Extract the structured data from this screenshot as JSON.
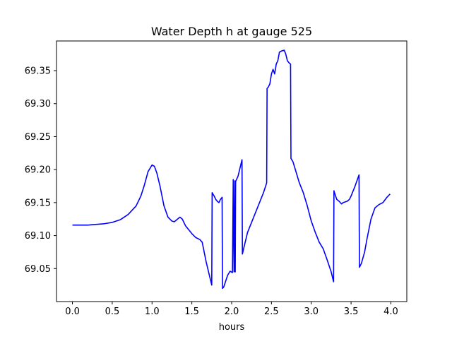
{
  "chart_data": {
    "type": "line",
    "title": "Water Depth h at gauge 525",
    "xlabel": "hours",
    "ylabel": "",
    "xlim": [
      -0.2,
      4.2
    ],
    "ylim": [
      69.0,
      69.395
    ],
    "xticks": [
      0.0,
      0.5,
      1.0,
      1.5,
      2.0,
      2.5,
      3.0,
      3.5,
      4.0
    ],
    "xtick_labels": [
      "0.0",
      "0.5",
      "1.0",
      "1.5",
      "2.0",
      "2.5",
      "3.0",
      "3.5",
      "4.0"
    ],
    "yticks": [
      69.05,
      69.1,
      69.15,
      69.2,
      69.25,
      69.3,
      69.35
    ],
    "ytick_labels": [
      "69.05",
      "69.10",
      "69.15",
      "69.20",
      "69.25",
      "69.30",
      "69.35"
    ],
    "grid": false,
    "series": [
      {
        "color": "#0000ff",
        "points": [
          [
            0.0,
            69.116
          ],
          [
            0.2,
            69.116
          ],
          [
            0.4,
            69.118
          ],
          [
            0.5,
            69.12
          ],
          [
            0.6,
            69.124
          ],
          [
            0.7,
            69.132
          ],
          [
            0.8,
            69.145
          ],
          [
            0.86,
            69.16
          ],
          [
            0.9,
            69.175
          ],
          [
            0.95,
            69.197
          ],
          [
            1.0,
            69.207
          ],
          [
            1.03,
            69.205
          ],
          [
            1.06,
            69.195
          ],
          [
            1.1,
            69.175
          ],
          [
            1.15,
            69.145
          ],
          [
            1.2,
            69.128
          ],
          [
            1.25,
            69.122
          ],
          [
            1.28,
            69.121
          ],
          [
            1.32,
            69.125
          ],
          [
            1.35,
            69.128
          ],
          [
            1.38,
            69.125
          ],
          [
            1.42,
            69.115
          ],
          [
            1.5,
            69.103
          ],
          [
            1.55,
            69.097
          ],
          [
            1.6,
            69.094
          ],
          [
            1.63,
            69.09
          ],
          [
            1.68,
            69.06
          ],
          [
            1.72,
            69.04
          ],
          [
            1.75,
            69.025
          ],
          [
            1.755,
            69.165
          ],
          [
            1.78,
            69.16
          ],
          [
            1.8,
            69.155
          ],
          [
            1.82,
            69.152
          ],
          [
            1.84,
            69.15
          ],
          [
            1.86,
            69.155
          ],
          [
            1.88,
            69.158
          ],
          [
            1.885,
            69.02
          ],
          [
            1.9,
            69.022
          ],
          [
            1.95,
            69.04
          ],
          [
            1.98,
            69.046
          ],
          [
            2.01,
            69.044
          ],
          [
            2.02,
            69.185
          ],
          [
            2.03,
            69.045
          ],
          [
            2.04,
            69.183
          ],
          [
            2.045,
            69.045
          ],
          [
            2.05,
            69.182
          ],
          [
            2.08,
            69.19
          ],
          [
            2.1,
            69.2
          ],
          [
            2.13,
            69.215
          ],
          [
            2.135,
            69.072
          ],
          [
            2.15,
            69.08
          ],
          [
            2.2,
            69.105
          ],
          [
            2.25,
            69.12
          ],
          [
            2.3,
            69.135
          ],
          [
            2.35,
            69.15
          ],
          [
            2.4,
            69.165
          ],
          [
            2.44,
            69.18
          ],
          [
            2.445,
            69.323
          ],
          [
            2.46,
            69.325
          ],
          [
            2.48,
            69.33
          ],
          [
            2.5,
            69.345
          ],
          [
            2.52,
            69.352
          ],
          [
            2.54,
            69.345
          ],
          [
            2.56,
            69.36
          ],
          [
            2.58,
            69.365
          ],
          [
            2.6,
            69.378
          ],
          [
            2.63,
            69.38
          ],
          [
            2.66,
            69.381
          ],
          [
            2.68,
            69.375
          ],
          [
            2.7,
            69.365
          ],
          [
            2.72,
            69.362
          ],
          [
            2.74,
            69.36
          ],
          [
            2.745,
            69.217
          ],
          [
            2.77,
            69.212
          ],
          [
            2.8,
            69.2
          ],
          [
            2.85,
            69.18
          ],
          [
            2.9,
            69.165
          ],
          [
            2.95,
            69.145
          ],
          [
            3.0,
            69.122
          ],
          [
            3.05,
            69.105
          ],
          [
            3.1,
            69.09
          ],
          [
            3.15,
            69.08
          ],
          [
            3.2,
            69.063
          ],
          [
            3.25,
            69.045
          ],
          [
            3.28,
            69.03
          ],
          [
            3.285,
            69.168
          ],
          [
            3.3,
            69.162
          ],
          [
            3.32,
            69.155
          ],
          [
            3.35,
            69.152
          ],
          [
            3.38,
            69.148
          ],
          [
            3.4,
            69.15
          ],
          [
            3.45,
            69.152
          ],
          [
            3.48,
            69.155
          ],
          [
            3.5,
            69.16
          ],
          [
            3.55,
            69.175
          ],
          [
            3.6,
            69.192
          ],
          [
            3.605,
            69.052
          ],
          [
            3.63,
            69.058
          ],
          [
            3.67,
            69.075
          ],
          [
            3.7,
            69.095
          ],
          [
            3.75,
            69.125
          ],
          [
            3.8,
            69.142
          ],
          [
            3.85,
            69.147
          ],
          [
            3.9,
            69.15
          ],
          [
            3.95,
            69.158
          ],
          [
            3.99,
            69.163
          ]
        ]
      }
    ]
  }
}
